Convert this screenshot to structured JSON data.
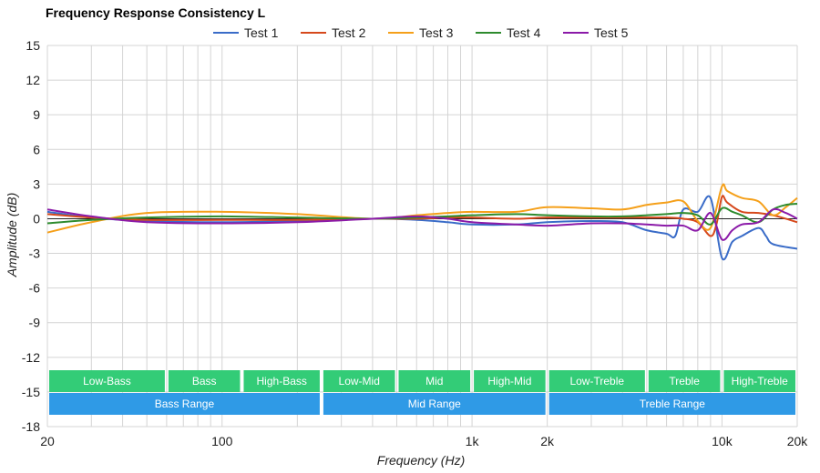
{
  "chart_data": {
    "type": "line",
    "title": "Frequency Response Consistency L",
    "xlabel": "Frequency (Hz)",
    "ylabel": "Amplitude (dB)",
    "x_scale": "log",
    "xlim": [
      20,
      20000
    ],
    "ylim": [
      -18,
      15
    ],
    "x_ticks": [
      20,
      100,
      1000,
      2000,
      10000,
      20000
    ],
    "x_tick_labels": [
      "20",
      "100",
      "1k",
      "2k",
      "10k",
      "20k"
    ],
    "y_ticks": [
      15,
      12,
      9,
      6,
      3,
      0,
      -3,
      -6,
      -9,
      -12,
      -15,
      -18
    ],
    "legend_position": "top-center",
    "grid": true,
    "zero_line_color": "#222222",
    "series": [
      {
        "name": "Test 1",
        "color": "#3a6cc8",
        "x": [
          20,
          30,
          50,
          100,
          200,
          400,
          600,
          800,
          1000,
          1500,
          2000,
          3000,
          4000,
          5000,
          6000,
          6500,
          7000,
          8000,
          9000,
          10000,
          11000,
          12000,
          14000,
          15000,
          16000,
          20000
        ],
        "y": [
          0.6,
          0.1,
          -0.2,
          -0.3,
          -0.2,
          0.0,
          -0.1,
          -0.3,
          -0.5,
          -0.5,
          -0.3,
          -0.2,
          -0.3,
          -1.0,
          -1.3,
          -1.5,
          0.8,
          0.6,
          1.8,
          -3.4,
          -2.0,
          -1.5,
          -0.8,
          -1.5,
          -2.2,
          -2.6
        ]
      },
      {
        "name": "Test 2",
        "color": "#d6491c",
        "x": [
          20,
          30,
          50,
          100,
          200,
          400,
          600,
          800,
          1000,
          1500,
          2000,
          3000,
          4000,
          5000,
          6000,
          7000,
          8000,
          9000,
          9500,
          10000,
          10500,
          12000,
          14000,
          16000,
          18000,
          20000
        ],
        "y": [
          0.4,
          0.1,
          -0.1,
          -0.1,
          -0.1,
          0.0,
          0.0,
          0.1,
          0.1,
          0.0,
          0.1,
          0.1,
          0.1,
          0.1,
          0.1,
          0.0,
          -0.3,
          -1.5,
          -0.5,
          1.9,
          1.4,
          0.6,
          0.5,
          0.3,
          0.0,
          -0.3
        ]
      },
      {
        "name": "Test 3",
        "color": "#f5a01a",
        "x": [
          20,
          30,
          50,
          100,
          200,
          400,
          600,
          800,
          1000,
          1500,
          2000,
          3000,
          4000,
          5000,
          6000,
          7000,
          8000,
          9000,
          10000,
          10500,
          12000,
          14000,
          16000,
          18000,
          20000
        ],
        "y": [
          -1.2,
          -0.3,
          0.5,
          0.6,
          0.4,
          0.0,
          0.3,
          0.5,
          0.6,
          0.6,
          1.0,
          0.9,
          0.8,
          1.2,
          1.4,
          1.5,
          -0.2,
          -0.8,
          2.8,
          2.4,
          1.8,
          1.5,
          0.3,
          1.0,
          1.8
        ]
      },
      {
        "name": "Test 4",
        "color": "#2e8b2e",
        "x": [
          20,
          30,
          50,
          100,
          200,
          400,
          600,
          800,
          1000,
          1500,
          2000,
          3000,
          4000,
          5000,
          6000,
          7000,
          8000,
          9000,
          10000,
          11000,
          12000,
          14000,
          16000,
          18000,
          20000
        ],
        "y": [
          -0.4,
          -0.1,
          0.1,
          0.2,
          0.1,
          0.0,
          0.1,
          0.2,
          0.3,
          0.4,
          0.3,
          0.2,
          0.2,
          0.3,
          0.4,
          0.5,
          0.3,
          -0.5,
          0.9,
          0.6,
          0.3,
          -0.3,
          0.8,
          1.2,
          1.3
        ]
      },
      {
        "name": "Test 5",
        "color": "#8b1aa8",
        "x": [
          20,
          30,
          50,
          100,
          200,
          400,
          600,
          800,
          1000,
          1500,
          2000,
          3000,
          4000,
          5000,
          6000,
          7000,
          8000,
          9000,
          10000,
          11000,
          12000,
          14000,
          16000,
          18000,
          20000
        ],
        "y": [
          0.8,
          0.2,
          -0.3,
          -0.4,
          -0.3,
          0.0,
          0.2,
          0.0,
          -0.3,
          -0.5,
          -0.6,
          -0.4,
          -0.4,
          -0.5,
          -0.6,
          -0.6,
          -1.0,
          0.5,
          -1.8,
          -1.0,
          -0.5,
          -0.3,
          0.8,
          0.5,
          0.0
        ]
      }
    ],
    "bands": [
      {
        "row": "sub",
        "label": "Low-Bass",
        "from": 20,
        "to": 60,
        "color": "#33cc77"
      },
      {
        "row": "sub",
        "label": "Bass",
        "from": 60,
        "to": 120,
        "color": "#33cc77"
      },
      {
        "row": "sub",
        "label": "High-Bass",
        "from": 120,
        "to": 250,
        "color": "#33cc77"
      },
      {
        "row": "sub",
        "label": "Low-Mid",
        "from": 250,
        "to": 500,
        "color": "#33cc77"
      },
      {
        "row": "sub",
        "label": "Mid",
        "from": 500,
        "to": 1000,
        "color": "#33cc77"
      },
      {
        "row": "sub",
        "label": "High-Mid",
        "from": 1000,
        "to": 2000,
        "color": "#33cc77"
      },
      {
        "row": "sub",
        "label": "Low-Treble",
        "from": 2000,
        "to": 5000,
        "color": "#33cc77"
      },
      {
        "row": "sub",
        "label": "Treble",
        "from": 5000,
        "to": 10000,
        "color": "#33cc77"
      },
      {
        "row": "sub",
        "label": "High-Treble",
        "from": 10000,
        "to": 20000,
        "color": "#33cc77"
      },
      {
        "row": "main",
        "label": "Bass Range",
        "from": 20,
        "to": 250,
        "color": "#2f9ae6"
      },
      {
        "row": "main",
        "label": "Mid Range",
        "from": 250,
        "to": 2000,
        "color": "#2f9ae6"
      },
      {
        "row": "main",
        "label": "Treble Range",
        "from": 2000,
        "to": 20000,
        "color": "#2f9ae6"
      }
    ]
  }
}
